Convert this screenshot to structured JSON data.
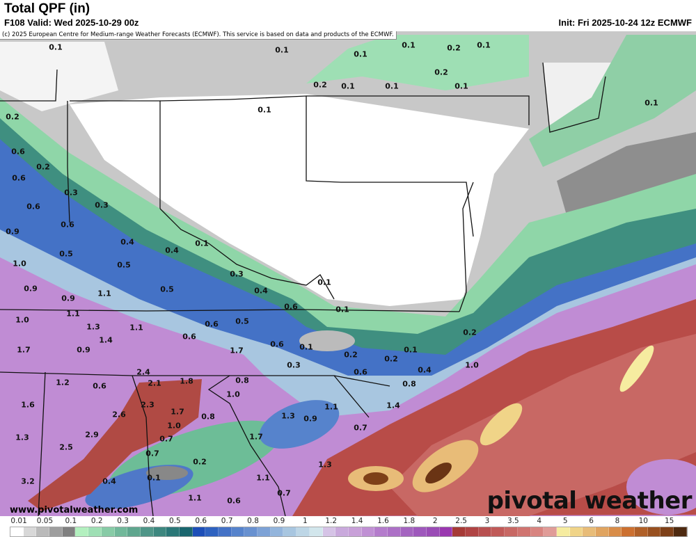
{
  "header": {
    "title": "Total QPF (in)",
    "valid": "F108 Valid: Wed 2025-10-29 00z",
    "init": "Init: Fri 2025-10-24 12z ECMWF"
  },
  "copyright": "(c) 2025 European Centre for Medium-range Weather Forecasts (ECMWF). This service is based on data and products of the ECMWF.",
  "website": "www.pivotalweather.com",
  "logo": "pivotal weather",
  "map_labels": [
    "0.1",
    "0.1",
    "0.1",
    "0.1",
    "0.2",
    "0.1",
    "0.2",
    "0.2",
    "0.1",
    "0.1",
    "0.1",
    "0.1",
    "0.1",
    "0.2",
    "0.6",
    "0.2",
    "0.6",
    "0.3",
    "0.3",
    "0.6",
    "0.6",
    "0.9",
    "0.4",
    "0.4",
    "0.1",
    "0.5",
    "0.5",
    "1.0",
    "0.3",
    "0.9",
    "0.5",
    "0.4",
    "0.1",
    "0.9",
    "1.1",
    "0.6",
    "0.1",
    "1.1",
    "1.0",
    "1.3",
    "1.1",
    "0.6",
    "0.5",
    "1.4",
    "1.7",
    "0.9",
    "0.6",
    "1.7",
    "0.6",
    "0.1",
    "0.3",
    "0.2",
    "0.2",
    "0.1",
    "0.4",
    "0.2",
    "1.0",
    "0.6",
    "0.8",
    "2.4",
    "2.1",
    "1.8",
    "1.2",
    "0.6",
    "0.8",
    "1.0",
    "1.6",
    "2.3",
    "2.6",
    "1.7",
    "0.8",
    "1.0",
    "1.3",
    "0.9",
    "1.1",
    "1.4",
    "2.9",
    "1.7",
    "1.3",
    "0.7",
    "0.7",
    "2.5",
    "0.7",
    "0.2",
    "1.3",
    "0.1",
    "0.4",
    "1.1",
    "3.2",
    "1.1",
    "0.6",
    "0.7"
  ],
  "colorbar": {
    "labels": [
      "0.01",
      "0.05",
      "0.1",
      "0.2",
      "0.3",
      "0.4",
      "0.5",
      "0.6",
      "0.7",
      "0.8",
      "0.9",
      "1",
      "1.2",
      "1.4",
      "1.6",
      "1.8",
      "2",
      "2.5",
      "3",
      "3.5",
      "4",
      "5",
      "6",
      "8",
      "10",
      "15"
    ],
    "colors": [
      "#ffffff",
      "#d8d8d8",
      "#bababa",
      "#9e9e9e",
      "#808080",
      "#b3f0bf",
      "#9edfb4",
      "#87cba6",
      "#71b89a",
      "#5fa68e",
      "#4f9688",
      "#3d877f",
      "#2a7777",
      "#1a666e",
      "#1d4fb8",
      "#2e62c0",
      "#4472c6",
      "#5683cc",
      "#6891d0",
      "#7da2d6",
      "#93b5dc",
      "#a8c6e0",
      "#bdd6e6",
      "#d2e6ec",
      "#d5c3e6",
      "#c9a9dc",
      "#c8a0d8",
      "#c090d4",
      "#b47ccc",
      "#ac70c6",
      "#a464c0",
      "#9e58bc",
      "#9a4cb6",
      "#9a38b0",
      "#a63a36",
      "#b04444",
      "#b85050",
      "#c05a58",
      "#c86864",
      "#d07470",
      "#d88480",
      "#e09c98",
      "#f6eca0",
      "#f0d488",
      "#e8bc78",
      "#e0a460",
      "#d88c48",
      "#cc7030",
      "#b06028",
      "#985020",
      "#7e4018",
      "#4e2a10"
    ]
  }
}
